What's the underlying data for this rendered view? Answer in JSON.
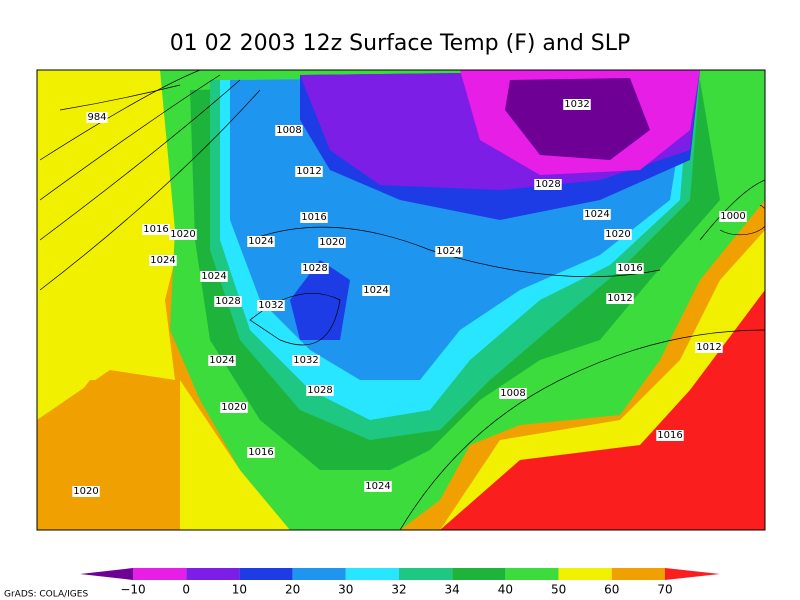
{
  "title": "01 02 2003 12z Surface Temp (F) and SLP",
  "isobars": {
    "labels": [
      "984",
      "1032",
      "1008",
      "1012",
      "1028",
      "1016",
      "1024",
      "1000",
      "1016",
      "1020",
      "1024",
      "1020",
      "1024",
      "1020",
      "1024",
      "1028",
      "1016",
      "1024",
      "1024",
      "1028",
      "1032",
      "1012",
      "1032",
      "1024",
      "1012",
      "1028",
      "1008",
      "1020",
      "1016",
      "1016",
      "1024",
      "1020"
    ]
  },
  "colorbar": {
    "ticks": [
      "−10",
      "0",
      "10",
      "20",
      "30",
      "32",
      "34",
      "40",
      "50",
      "60",
      "70"
    ],
    "colors": [
      "#6e0096",
      "#e61ee6",
      "#7d1ee6",
      "#1e3ce6",
      "#1e96f0",
      "#28e6ff",
      "#1ec882",
      "#1eb43c",
      "#3cdc3c",
      "#f0f000",
      "#f0a000",
      "#fa1e1e"
    ]
  },
  "credit": "GrADS: COLA/IGES"
}
